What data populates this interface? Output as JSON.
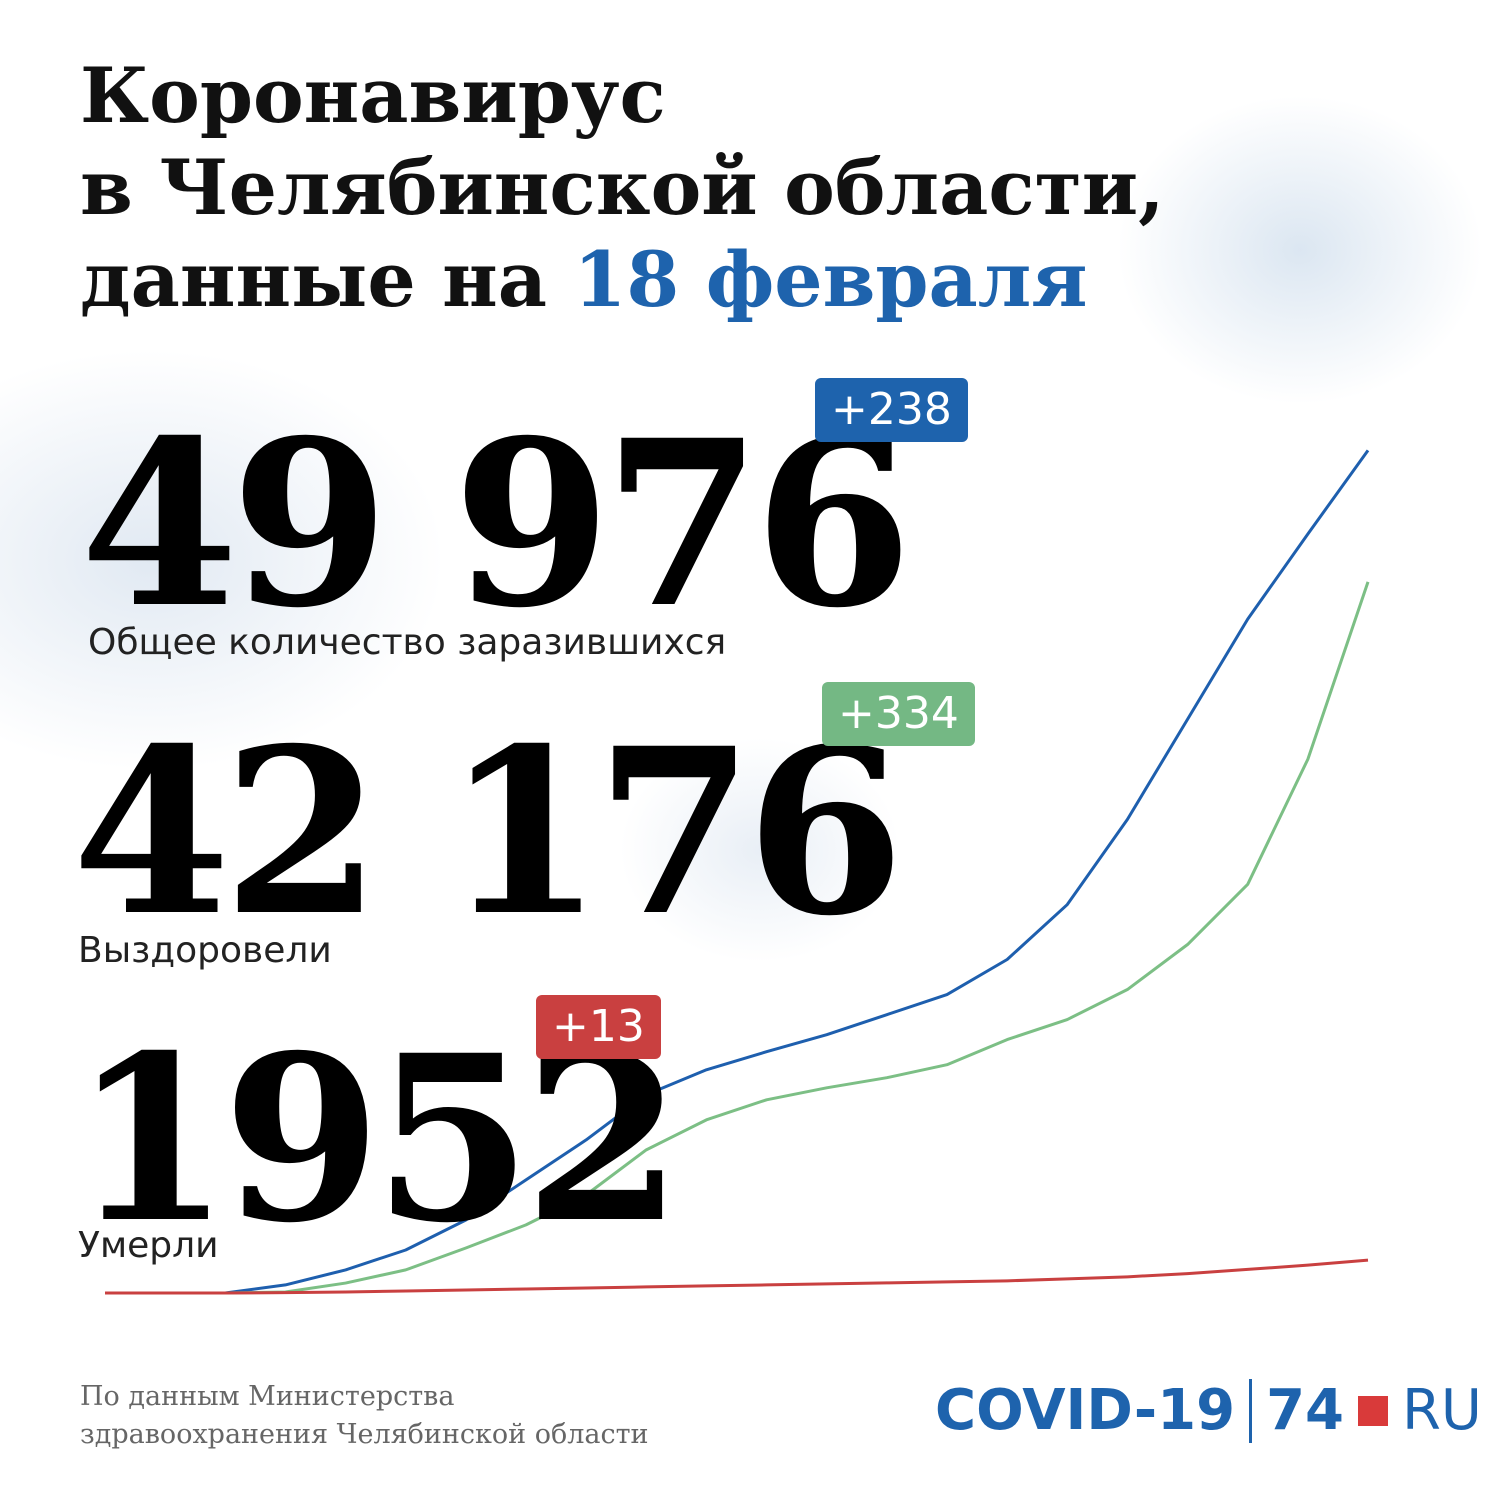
{
  "header": {
    "title_lines": [
      "Коронавирус",
      "в Челябинской области,",
      "данные на "
    ],
    "date": "18 февраля"
  },
  "stats": [
    {
      "value": "49 976",
      "delta": "+238",
      "label": "Общее количество заразившихся"
    },
    {
      "value": "42 176",
      "delta": "+334",
      "label": "Выздоровели"
    },
    {
      "value": "1952",
      "delta": "+13",
      "label": "Умерли"
    }
  ],
  "chart_data": {
    "type": "line",
    "ylim": [
      0,
      50000
    ],
    "series": [
      {
        "color": "#1e5fae",
        "values": [
          0,
          0,
          0,
          480,
          1370,
          2550,
          4330,
          6710,
          9080,
          11760,
          13240,
          14310,
          15320,
          16510,
          17700,
          19780,
          23040,
          28090,
          34030,
          39970,
          45020,
          49976
        ]
      },
      {
        "color": "#7cbf85",
        "values": [
          0,
          0,
          0,
          60,
          590,
          1370,
          2670,
          4040,
          5820,
          8490,
          10270,
          11460,
          12170,
          12770,
          13540,
          15030,
          16220,
          18000,
          20670,
          24240,
          31660,
          42176
        ]
      },
      {
        "color": "#c94040",
        "values": [
          0,
          0,
          0,
          20,
          60,
          120,
          180,
          240,
          300,
          360,
          420,
          480,
          540,
          600,
          660,
          720,
          840,
          960,
          1150,
          1400,
          1650,
          1952
        ]
      }
    ]
  },
  "source": [
    "По данным Министерства",
    "здравоохранения Челябинской области"
  ],
  "logo": {
    "covid": "COVID-19",
    "num": "74",
    "ru": "RU"
  }
}
